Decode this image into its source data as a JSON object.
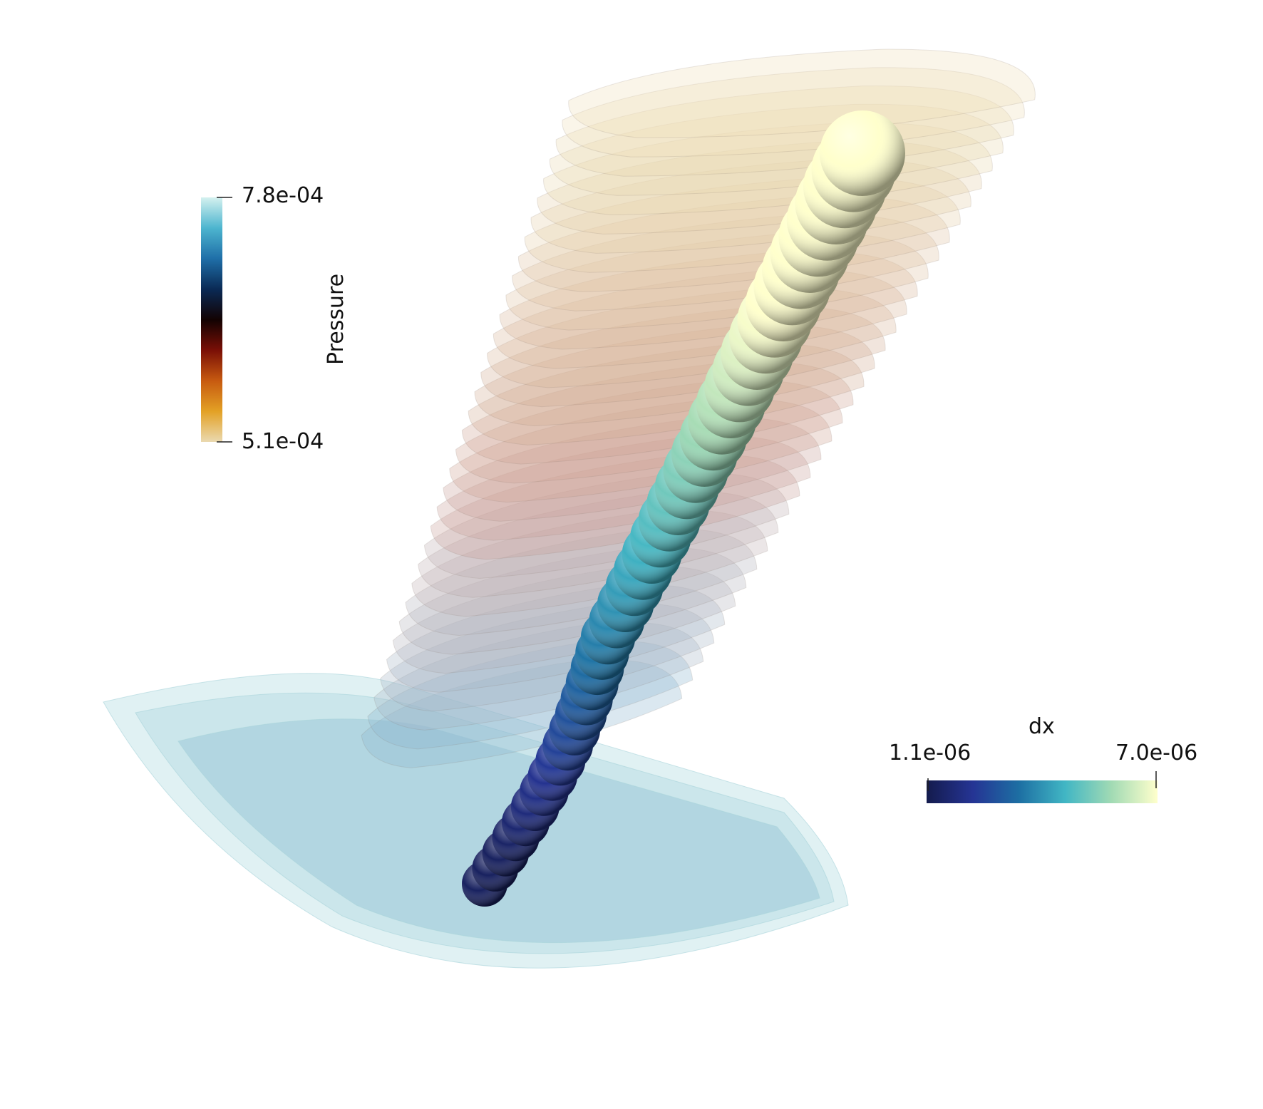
{
  "colors": {
    "background": "#ffffff",
    "pressure_map": [
      "#ead9b0",
      "#e3a125",
      "#c75a10",
      "#7a0f06",
      "#120202",
      "#0a2a55",
      "#1f6fa8",
      "#4db5cf",
      "#d4f1ef"
    ],
    "dx_map": [
      "#141b4d",
      "#253494",
      "#1d6fa3",
      "#41b6c4",
      "#a1dab4",
      "#ffffcc"
    ]
  },
  "legend_pressure": {
    "title": "Pressure",
    "max_label": "7.8e-04",
    "min_label": "5.1e-04"
  },
  "legend_dx": {
    "title": "dx",
    "min_label": "1.1e-06",
    "max_label": "7.0e-06"
  }
}
